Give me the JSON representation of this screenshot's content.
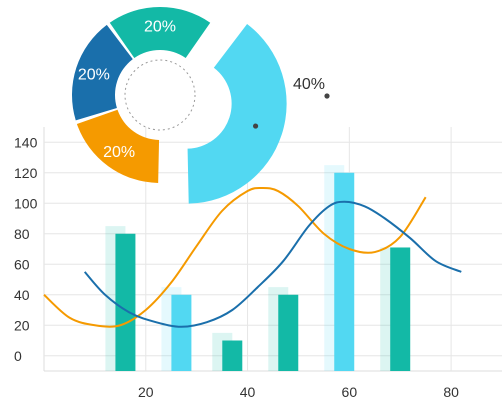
{
  "chart_data": [
    {
      "type": "bar",
      "x_ticks": [
        "20",
        "40",
        "60",
        "80"
      ],
      "y_ticks": [
        "0",
        "20",
        "40",
        "60",
        "80",
        "100",
        "120",
        "140"
      ],
      "xlim": [
        0,
        90
      ],
      "ylim": [
        -10,
        150
      ],
      "grid": true,
      "bars": [
        {
          "x": 16,
          "value": 80,
          "ghost": 85,
          "color": "#13b9a6"
        },
        {
          "x": 27,
          "value": 40,
          "ghost": 45,
          "color": "#52d8f2"
        },
        {
          "x": 37,
          "value": 10,
          "ghost": 15,
          "color": "#13b9a6"
        },
        {
          "x": 48,
          "value": 40,
          "ghost": 45,
          "color": "#13b9a6"
        },
        {
          "x": 59,
          "value": 120,
          "ghost": 125,
          "color": "#52d8f2"
        },
        {
          "x": 70,
          "value": 71,
          "ghost": 71,
          "color": "#13b9a6"
        }
      ],
      "series": [
        {
          "color": "#f59a00",
          "x": [
            0,
            5,
            10,
            15,
            20,
            25,
            30,
            35,
            40,
            43,
            46,
            50,
            55,
            60,
            65,
            70,
            75
          ],
          "y": [
            40,
            25,
            20,
            20,
            30,
            48,
            72,
            95,
            108,
            110,
            108,
            98,
            80,
            70,
            68,
            78,
            104
          ]
        },
        {
          "color": "#1a6fab",
          "x": [
            8,
            12,
            17,
            22,
            27,
            32,
            37,
            42,
            47,
            52,
            56,
            59,
            63,
            67,
            72,
            77,
            82
          ],
          "y": [
            55,
            40,
            28,
            22,
            19,
            22,
            30,
            45,
            62,
            85,
            98,
            101,
            98,
            90,
            77,
            62,
            55
          ]
        }
      ]
    },
    {
      "type": "pie",
      "slices": [
        {
          "label": "20%",
          "value": 20,
          "color": "#13b9a6"
        },
        {
          "label": "40%",
          "value": 40,
          "color": "#52d8f2"
        },
        {
          "label": "20%",
          "value": 20,
          "color": "#f59a00"
        },
        {
          "label": "20%",
          "value": 20,
          "color": "#1a6fab"
        }
      ]
    }
  ]
}
